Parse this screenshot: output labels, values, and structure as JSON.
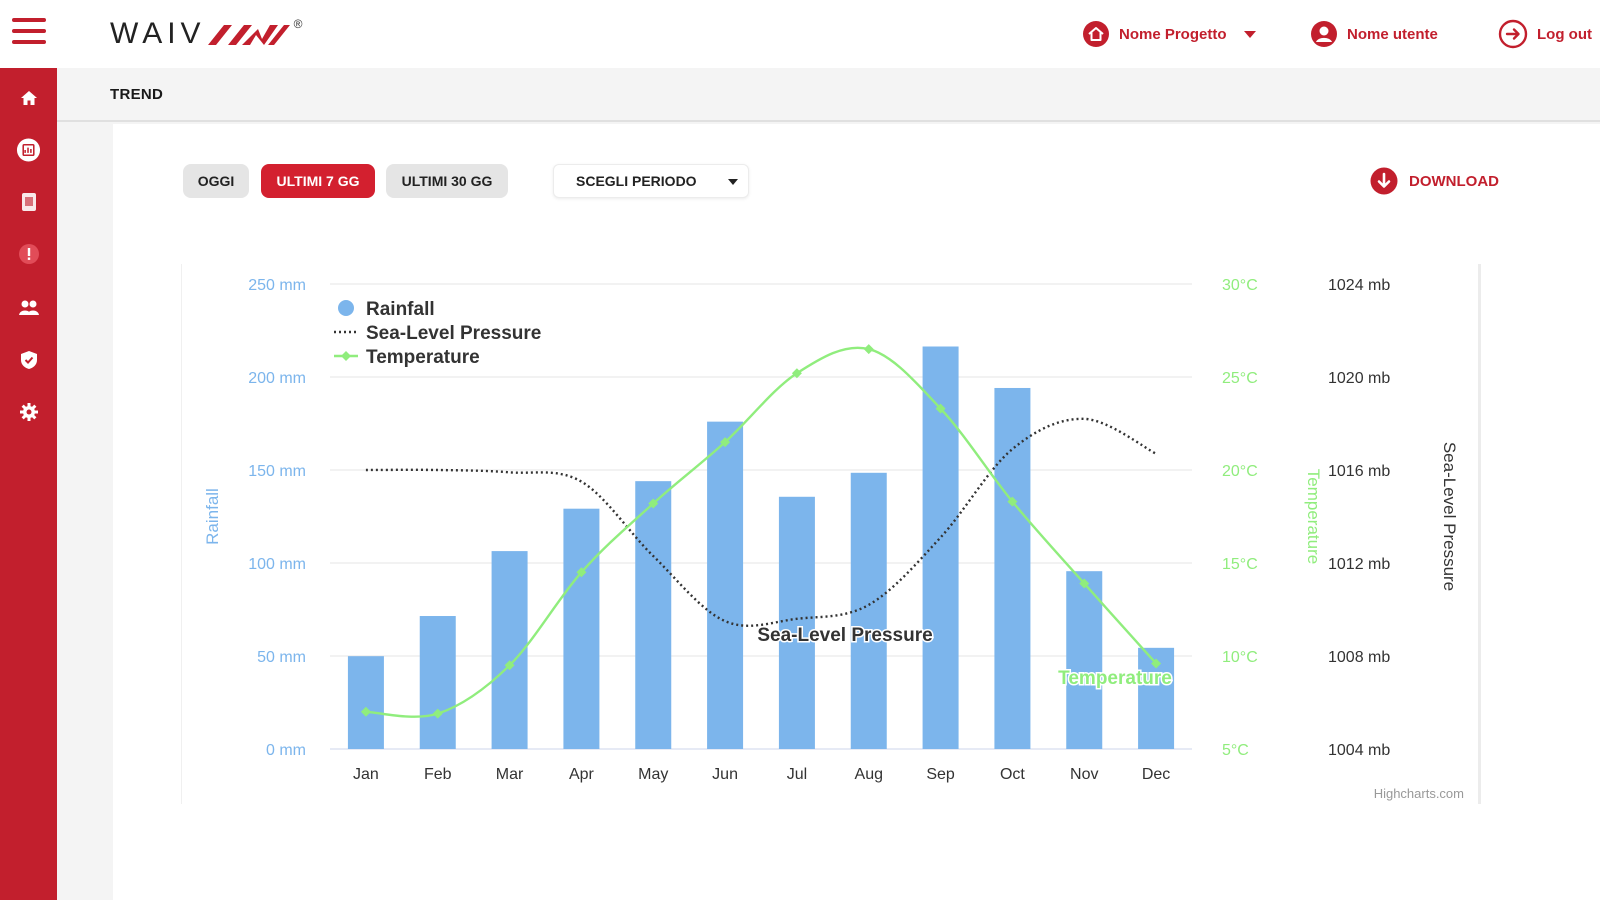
{
  "header": {
    "logo_text": "WAIV",
    "logo_reg": "®",
    "project_label": "Nome Progetto",
    "user_label": "Nome utente",
    "logout_label": "Log out"
  },
  "sidebar": {
    "items": [
      {
        "icon": "home-icon"
      },
      {
        "icon": "dashboard-icon"
      },
      {
        "icon": "document-icon"
      },
      {
        "icon": "alert-icon"
      },
      {
        "icon": "users-icon"
      },
      {
        "icon": "shield-icon"
      },
      {
        "icon": "gear-icon"
      }
    ]
  },
  "page": {
    "title": "TREND"
  },
  "toolbar": {
    "today_label": "OGGI",
    "last7_label": "ULTIMI 7 GG",
    "last30_label": "ULTIMI 30 GG",
    "period_label": "SCEGLI PERIODO",
    "download_label": "DOWNLOAD"
  },
  "colors": {
    "accent": "#c21f2d",
    "rainfall": "#7cb5ec",
    "temperature": "#90ed7d",
    "pressure": "#333333"
  },
  "chart_data": {
    "type": "bar",
    "categories": [
      "Jan",
      "Feb",
      "Mar",
      "Apr",
      "May",
      "Jun",
      "Jul",
      "Aug",
      "Sep",
      "Oct",
      "Nov",
      "Dec"
    ],
    "series": [
      {
        "name": "Rainfall",
        "type": "bar",
        "axis": "left",
        "values": [
          49.9,
          71.5,
          106.4,
          129.2,
          144.0,
          176.0,
          135.6,
          148.5,
          216.4,
          194.1,
          95.6,
          54.4
        ]
      },
      {
        "name": "Sea-Level Pressure",
        "type": "line",
        "style": "dotted",
        "axis": "right2",
        "values": [
          1016,
          1016,
          1015.9,
          1015.5,
          1012.3,
          1009.5,
          1009.6,
          1010.2,
          1013.1,
          1016.9,
          1018.2,
          1016.7
        ]
      },
      {
        "name": "Temperature",
        "type": "line",
        "axis": "right1",
        "values": [
          7.0,
          6.9,
          9.5,
          14.5,
          18.2,
          21.5,
          25.2,
          26.5,
          23.3,
          18.3,
          13.9,
          9.6
        ]
      }
    ],
    "series_labels": {
      "pressure": "Sea-Level Pressure",
      "temperature": "Temperature"
    },
    "axes": {
      "left": {
        "title": "Rainfall",
        "min": 0,
        "max": 250,
        "ticks": [
          "0 mm",
          "50 mm",
          "100 mm",
          "150 mm",
          "200 mm",
          "250 mm"
        ]
      },
      "right1": {
        "title": "Temperature",
        "min": 5,
        "max": 30,
        "ticks": [
          "5°C",
          "10°C",
          "15°C",
          "20°C",
          "25°C",
          "30°C"
        ]
      },
      "right2": {
        "title": "Sea-Level Pressure",
        "min": 1004,
        "max": 1024,
        "ticks": [
          "1004 mb",
          "1008 mb",
          "1012 mb",
          "1016 mb",
          "1020 mb",
          "1024 mb"
        ]
      }
    },
    "legend": "top-left",
    "grid": true,
    "credits": "Highcharts.com"
  }
}
